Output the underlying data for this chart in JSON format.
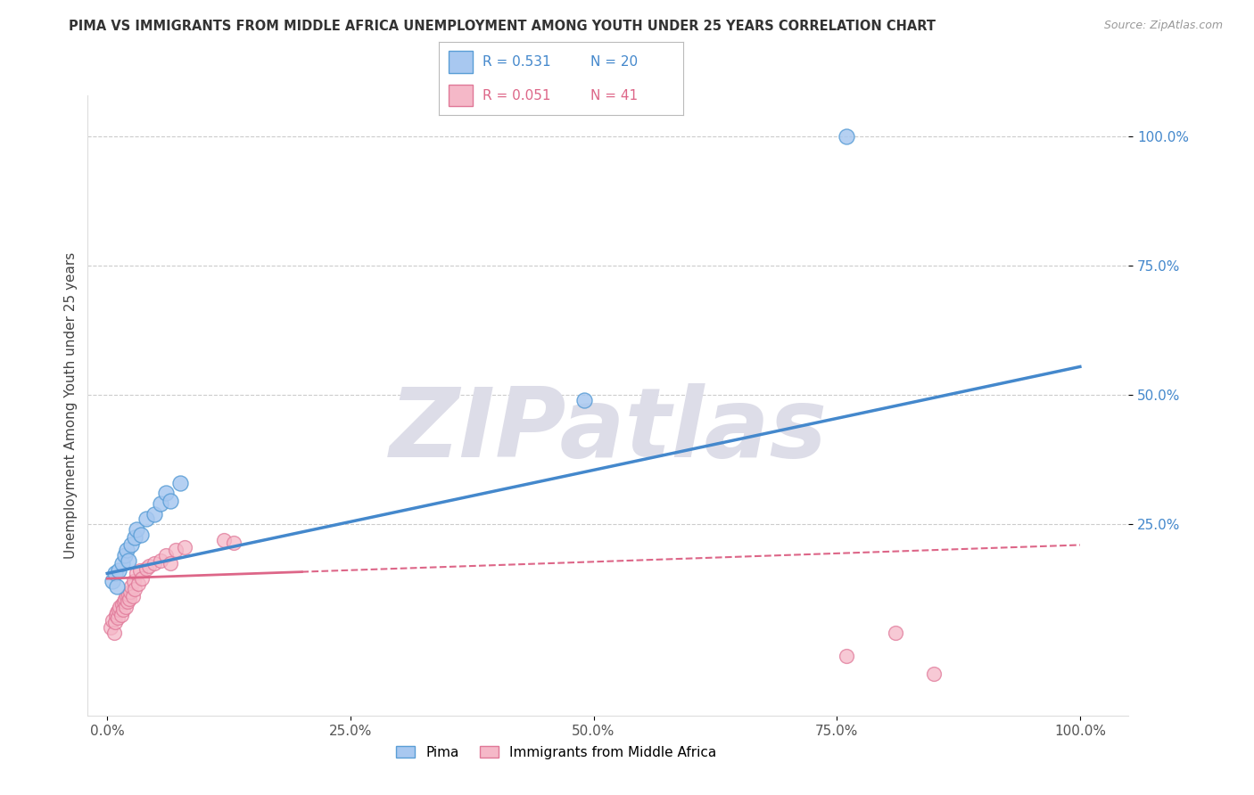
{
  "title": "PIMA VS IMMIGRANTS FROM MIDDLE AFRICA UNEMPLOYMENT AMONG YOUTH UNDER 25 YEARS CORRELATION CHART",
  "source": "Source: ZipAtlas.com",
  "ylabel": "Unemployment Among Youth under 25 years",
  "xlim": [
    -0.02,
    1.05
  ],
  "ylim": [
    -0.12,
    1.08
  ],
  "xticks": [
    0.0,
    0.25,
    0.5,
    0.75,
    1.0
  ],
  "xtick_labels": [
    "0.0%",
    "25.0%",
    "50.0%",
    "75.0%",
    "100.0%"
  ],
  "yticks": [
    0.25,
    0.5,
    0.75,
    1.0
  ],
  "ytick_labels": [
    "25.0%",
    "50.0%",
    "75.0%",
    "100.0%"
  ],
  "pima_fill": "#A8C8F0",
  "pima_edge": "#5A9ED6",
  "imm_fill": "#F5B8C8",
  "imm_edge": "#E07898",
  "pima_line_color": "#4488CC",
  "imm_line_color": "#DD6688",
  "R_pima": 0.531,
  "N_pima": 20,
  "R_imm": 0.051,
  "N_imm": 41,
  "pima_x": [
    0.005,
    0.008,
    0.01,
    0.012,
    0.015,
    0.018,
    0.02,
    0.022,
    0.025,
    0.028,
    0.03,
    0.035,
    0.04,
    0.048,
    0.055,
    0.06,
    0.065,
    0.075,
    0.49,
    0.76
  ],
  "pima_y": [
    0.14,
    0.155,
    0.13,
    0.16,
    0.175,
    0.19,
    0.2,
    0.18,
    0.21,
    0.225,
    0.24,
    0.23,
    0.26,
    0.27,
    0.29,
    0.31,
    0.295,
    0.33,
    0.49,
    1.0
  ],
  "imm_x": [
    0.003,
    0.005,
    0.007,
    0.008,
    0.009,
    0.01,
    0.011,
    0.012,
    0.013,
    0.014,
    0.015,
    0.016,
    0.017,
    0.018,
    0.019,
    0.02,
    0.021,
    0.022,
    0.023,
    0.024,
    0.025,
    0.026,
    0.027,
    0.028,
    0.03,
    0.032,
    0.034,
    0.036,
    0.04,
    0.043,
    0.048,
    0.055,
    0.06,
    0.065,
    0.07,
    0.08,
    0.12,
    0.13,
    0.76,
    0.81,
    0.85
  ],
  "imm_y": [
    0.05,
    0.065,
    0.04,
    0.06,
    0.075,
    0.08,
    0.07,
    0.085,
    0.09,
    0.075,
    0.095,
    0.085,
    0.1,
    0.105,
    0.09,
    0.11,
    0.1,
    0.115,
    0.105,
    0.12,
    0.13,
    0.11,
    0.14,
    0.125,
    0.155,
    0.135,
    0.16,
    0.145,
    0.165,
    0.17,
    0.175,
    0.18,
    0.19,
    0.175,
    0.2,
    0.205,
    0.22,
    0.215,
    -0.005,
    0.04,
    -0.04
  ],
  "background_color": "#FFFFFF",
  "grid_color": "#CCCCCC",
  "watermark_text": "ZIPatlas",
  "watermark_color": "#DDDDE8",
  "legend_R_color_blue": "#4488CC",
  "legend_R_color_pink": "#DD6688",
  "legend_N_color_blue": "#4488CC",
  "legend_N_color_pink": "#DD6688"
}
